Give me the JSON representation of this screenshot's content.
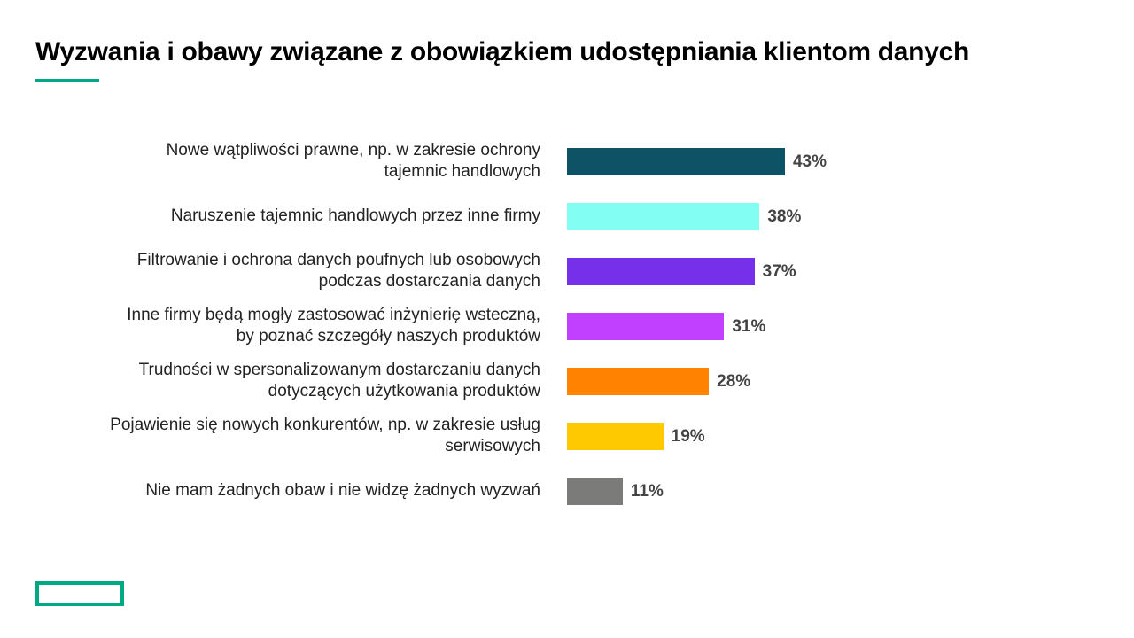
{
  "chart_data": {
    "type": "bar",
    "orientation": "horizontal",
    "title": "Wyzwania i obawy związane z obowiązkiem udostępniania klientom danych",
    "categories": [
      "Nowe wątpliwości prawne, np. w zakresie ochrony\ntajemnic handlowych",
      "Naruszenie tajemnic handlowych przez inne firmy",
      "Filtrowanie i ochrona danych poufnych lub osobowych\npodczas dostarczania danych",
      "Inne firmy będą mogły zastosować inżynierię wsteczną,\nby poznać szczegóły naszych produktów",
      "Trudności w spersonalizowanym dostarczaniu danych\ndotyczących użytkowania produktów",
      "Pojawienie się nowych konkurentów, np. w zakresie usług\nserwisowych",
      "Nie mam żadnych obaw i nie widzę żadnych wyzwań"
    ],
    "values": [
      43,
      38,
      37,
      31,
      28,
      19,
      11
    ],
    "value_labels": [
      "43%",
      "38%",
      "37%",
      "31%",
      "28%",
      "19%",
      "11%"
    ],
    "colors": [
      "#0d5265",
      "#82fff2",
      "#7630ea",
      "#c140ff",
      "#ff8300",
      "#fec901",
      "#7b7b79"
    ]
  }
}
